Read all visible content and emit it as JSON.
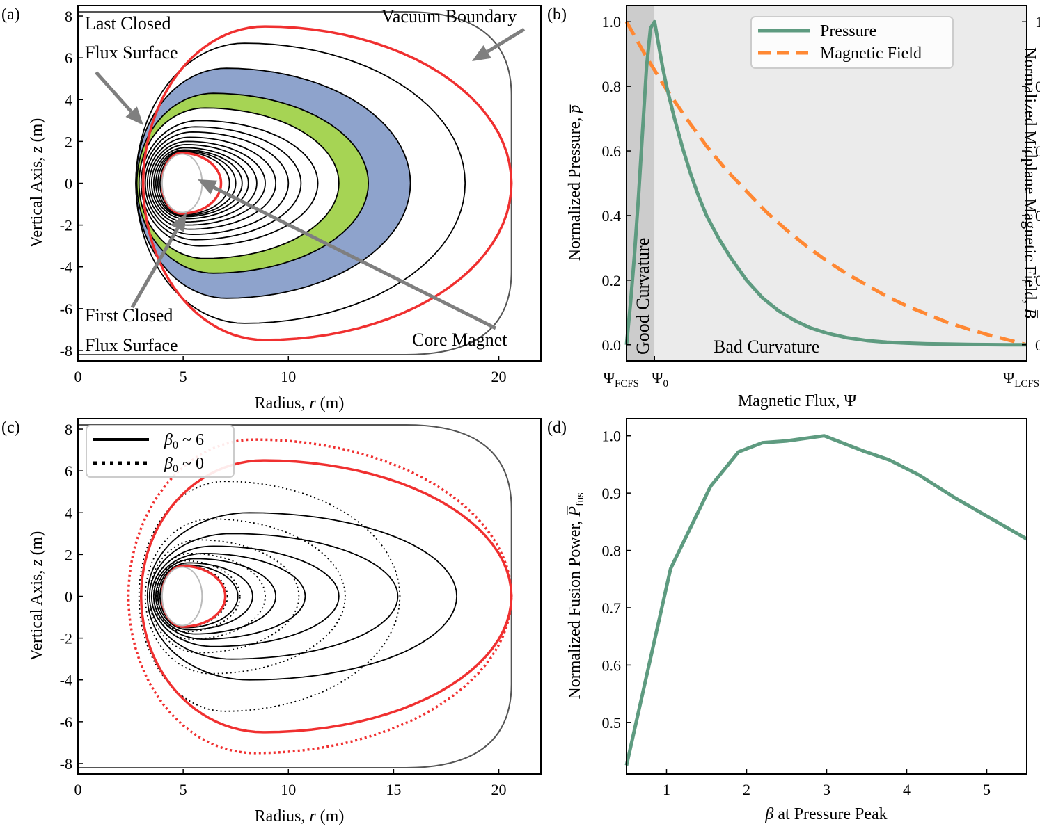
{
  "colors": {
    "lcfs": "#f03030",
    "vacuum": "#555555",
    "blue_region": "#8ea3cc",
    "green_region": "#a6d454",
    "pressure": "#5e9b80",
    "field": "#ff8833",
    "good_shade": "#cccccc",
    "bad_shade": "#ebebeb"
  },
  "chart_data": [
    {
      "id": "a",
      "panel_label": "(a)",
      "type": "contour",
      "xlabel_text": "Radius, ",
      "xlabel_var": "r",
      "xlabel_unit": " (m)",
      "ylabel_text": "Vertical Axis, ",
      "ylabel_var": "z",
      "ylabel_unit": " (m)",
      "xlim": [
        0,
        22
      ],
      "ylim": [
        -8.5,
        8.5
      ],
      "xticks": [
        0,
        5,
        10,
        20
      ],
      "yticks": [
        8,
        6,
        4,
        2,
        0,
        -2,
        -4,
        -6,
        -8
      ],
      "xtick_labels": [
        "0",
        "5",
        "10",
        "20"
      ],
      "ytick_labels": [
        "8",
        "6",
        "4",
        "2",
        "0",
        "-2",
        "-4",
        "-6",
        "-8"
      ],
      "annotations": {
        "last_closed_1": "Last Closed",
        "last_closed_2": "Flux Surface",
        "first_closed_1": "First Closed",
        "first_closed_2": "Flux Surface",
        "vacuum": "Vacuum Boundary",
        "core": "Core Magnet"
      },
      "core_magnet": {
        "r_left": 4.0,
        "r_right": 5.9,
        "z_half": 1.4
      },
      "first_closed_surface": {
        "r_left": 4.0,
        "r_right": 6.8,
        "z_half": 1.45
      },
      "last_closed_surface": {
        "r_left": 3.1,
        "r_right": 20.6,
        "z_half": 7.5
      },
      "vacuum_boundary": {
        "r_max": 20.6,
        "z_max": 8.2,
        "straight_z": 4.2
      },
      "flux_surfaces": [
        {
          "r_left": 2.75,
          "r_right": 18.4,
          "z_half": 6.7
        },
        {
          "r_left": 2.75,
          "r_right": 15.8,
          "z_half": 5.5
        },
        {
          "r_left": 2.8,
          "r_right": 13.8,
          "z_half": 4.3
        },
        {
          "r_left": 2.9,
          "r_right": 12.4,
          "z_half": 3.6
        },
        {
          "r_left": 3.0,
          "r_right": 11.4,
          "z_half": 3.0
        },
        {
          "r_left": 3.1,
          "r_right": 10.6,
          "z_half": 2.7
        },
        {
          "r_left": 3.2,
          "r_right": 10.0,
          "z_half": 2.45
        },
        {
          "r_left": 3.3,
          "r_right": 9.4,
          "z_half": 2.2
        },
        {
          "r_left": 3.4,
          "r_right": 8.9,
          "z_half": 2.0
        },
        {
          "r_left": 3.5,
          "r_right": 8.5,
          "z_half": 1.85
        },
        {
          "r_left": 3.6,
          "r_right": 8.1,
          "z_half": 1.7
        },
        {
          "r_left": 3.7,
          "r_right": 7.8,
          "z_half": 1.6
        },
        {
          "r_left": 3.8,
          "r_right": 7.5,
          "z_half": 1.55
        },
        {
          "r_left": 3.9,
          "r_right": 7.2,
          "z_half": 1.5
        }
      ],
      "blue_region": {
        "outer": 1,
        "inner": 2
      },
      "green_region": {
        "outer": 2,
        "inner": 3
      }
    },
    {
      "id": "b",
      "panel_label": "(b)",
      "type": "line",
      "xlabel": "Magnetic Flux, Ψ",
      "ylabel_left_text": "Normalized Pressure, ",
      "ylabel_left_var": "p̅",
      "ylabel_right_text": "Normalized Midplane Magnetic Field, ",
      "ylabel_right_var": "B̅",
      "xlim": [
        0,
        1
      ],
      "ylim": [
        -0.05,
        1.05
      ],
      "yticks": [
        0.0,
        0.2,
        0.4,
        0.6,
        0.8,
        1.0
      ],
      "ytick_labels": [
        "0.0",
        "0.2",
        "0.4",
        "0.6",
        "0.8",
        "1.0"
      ],
      "xtick_psi_fcfs": {
        "base": "Ψ",
        "sub": "FCFS",
        "x": 0.0
      },
      "xtick_psi_0": {
        "base": "Ψ",
        "sub": "0",
        "x": 0.07
      },
      "xtick_psi_lcfs": {
        "base": "Ψ",
        "sub": "LCFS",
        "x": 1.0
      },
      "region_good": "Good Curvature",
      "region_bad": "Bad Curvature",
      "good_curvature_end": 0.07,
      "legend_position": "top-right",
      "series": [
        {
          "name": "Pressure",
          "style": "solid",
          "x": [
            0.0,
            0.01,
            0.02,
            0.03,
            0.04,
            0.05,
            0.06,
            0.07,
            0.08,
            0.09,
            0.1,
            0.12,
            0.14,
            0.16,
            0.18,
            0.2,
            0.23,
            0.26,
            0.3,
            0.34,
            0.38,
            0.42,
            0.46,
            0.5,
            0.55,
            0.6,
            0.65,
            0.7,
            0.75,
            0.8,
            0.85,
            0.9,
            0.95,
            1.0
          ],
          "y": [
            0.0,
            0.13,
            0.28,
            0.46,
            0.66,
            0.86,
            0.98,
            1.0,
            0.93,
            0.86,
            0.8,
            0.7,
            0.61,
            0.53,
            0.46,
            0.4,
            0.33,
            0.27,
            0.2,
            0.145,
            0.105,
            0.075,
            0.052,
            0.036,
            0.022,
            0.013,
            0.008,
            0.005,
            0.003,
            0.002,
            0.001,
            0.0005,
            0.0,
            0.0
          ]
        },
        {
          "name": "Magnetic Field",
          "style": "dashed",
          "x": [
            0.0,
            0.05,
            0.1,
            0.15,
            0.2,
            0.25,
            0.3,
            0.35,
            0.4,
            0.45,
            0.5,
            0.55,
            0.6,
            0.65,
            0.7,
            0.75,
            0.8,
            0.85,
            0.9,
            0.95,
            1.0
          ],
          "y": [
            1.0,
            0.89,
            0.79,
            0.7,
            0.615,
            0.54,
            0.475,
            0.41,
            0.355,
            0.305,
            0.26,
            0.22,
            0.185,
            0.15,
            0.12,
            0.095,
            0.07,
            0.05,
            0.032,
            0.016,
            0.0
          ]
        }
      ]
    },
    {
      "id": "c",
      "panel_label": "(c)",
      "type": "contour",
      "xlabel_text": "Radius, ",
      "xlabel_var": "r",
      "xlabel_unit": " (m)",
      "ylabel_text": "Vertical Axis, ",
      "ylabel_var": "z",
      "ylabel_unit": " (m)",
      "xlim": [
        0,
        22
      ],
      "ylim": [
        -8.5,
        8.5
      ],
      "xticks": [
        0,
        5,
        10,
        15,
        20
      ],
      "yticks": [
        8,
        6,
        4,
        2,
        0,
        -2,
        -4,
        -6,
        -8
      ],
      "xtick_labels": [
        "0",
        "5",
        "10",
        "15",
        "20"
      ],
      "ytick_labels": [
        "8",
        "6",
        "4",
        "2",
        "0",
        "-2",
        "-4",
        "-6",
        "-8"
      ],
      "legend_position": "top-left",
      "legend": [
        {
          "var": "β",
          "sub": "0",
          "text": " ~ 6",
          "style": "solid"
        },
        {
          "var": "β",
          "sub": "0",
          "text": " ~ 0",
          "style": "dotted"
        }
      ],
      "core_magnet": {
        "r_left": 4.0,
        "r_right": 5.9,
        "z_half": 1.4
      },
      "vacuum_boundary": {
        "r_max": 20.6,
        "z_max": 8.2,
        "straight_z": 4.2
      },
      "lcfs_solid": {
        "r_left": 3.0,
        "r_right": 20.6,
        "z_half": 6.5
      },
      "lcfs_dotted": {
        "r_left": 2.4,
        "r_right": 20.6,
        "z_half": 7.5
      },
      "fcfs_solid": {
        "r_left": 4.0,
        "r_right": 7.0,
        "z_half": 1.45
      },
      "solid_surfaces": [
        {
          "r_left": 3.3,
          "r_right": 18.0,
          "z_half": 4.0
        },
        {
          "r_left": 3.4,
          "r_right": 15.2,
          "z_half": 3.0
        },
        {
          "r_left": 3.5,
          "r_right": 12.4,
          "z_half": 2.4
        },
        {
          "r_left": 3.6,
          "r_right": 10.8,
          "z_half": 2.05
        },
        {
          "r_left": 3.7,
          "r_right": 9.4,
          "z_half": 1.8
        },
        {
          "r_left": 3.8,
          "r_right": 8.3,
          "z_half": 1.6
        },
        {
          "r_left": 3.9,
          "r_right": 7.6,
          "z_half": 1.5
        }
      ],
      "dotted_surfaces": [
        {
          "r_left": 2.9,
          "r_right": 15.3,
          "z_half": 5.5
        },
        {
          "r_left": 3.2,
          "r_right": 12.7,
          "z_half": 3.7
        },
        {
          "r_left": 3.4,
          "r_right": 10.5,
          "z_half": 2.7
        },
        {
          "r_left": 3.6,
          "r_right": 8.9,
          "z_half": 2.05
        },
        {
          "r_left": 3.75,
          "r_right": 7.7,
          "z_half": 1.7
        },
        {
          "r_left": 3.9,
          "r_right": 7.1,
          "z_half": 1.5
        }
      ]
    },
    {
      "id": "d",
      "panel_label": "(d)",
      "type": "line",
      "xlabel_var": "β",
      "xlabel_text": " at Pressure Peak",
      "ylabel_text": "Normalized Fusion Power, ",
      "ylabel_var": "P̅",
      "ylabel_sub": "fus",
      "xlim": [
        0.5,
        5.5
      ],
      "ylim": [
        0.41,
        1.03
      ],
      "xticks": [
        1,
        2,
        3,
        4,
        5
      ],
      "xtick_labels": [
        "1",
        "2",
        "3",
        "4",
        "5"
      ],
      "yticks": [
        0.5,
        0.6,
        0.7,
        0.8,
        0.9,
        1.0
      ],
      "ytick_labels": [
        "0.5",
        "0.6",
        "0.7",
        "0.8",
        "0.9",
        "1.0"
      ],
      "series": [
        {
          "x": [
            0.5,
            1.05,
            1.55,
            1.9,
            2.2,
            2.5,
            2.97,
            3.45,
            3.78,
            4.15,
            4.6,
            5.1,
            5.5
          ],
          "y": [
            0.425,
            0.768,
            0.912,
            0.972,
            0.988,
            0.991,
            1.0,
            0.974,
            0.958,
            0.932,
            0.892,
            0.852,
            0.82
          ]
        }
      ]
    }
  ]
}
